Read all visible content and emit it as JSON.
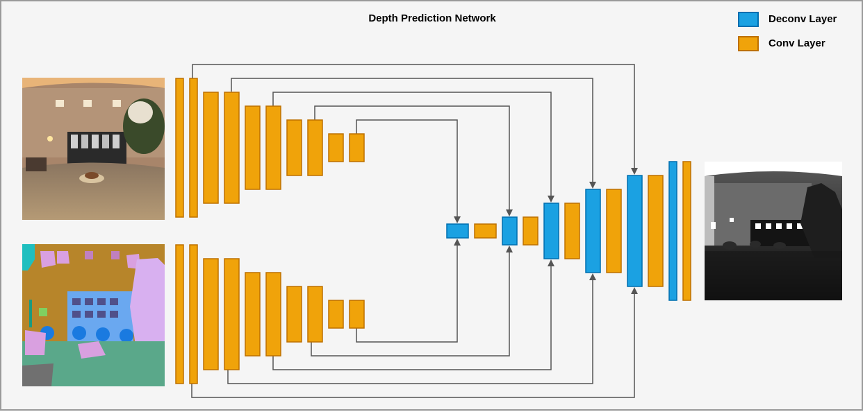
{
  "title": "Depth Prediction Network",
  "legend": {
    "deconv_label": "Deconv Layer",
    "conv_label": "Conv Layer"
  },
  "colors": {
    "conv_fill": "#f0a30a",
    "conv_stroke": "#bd7000",
    "deconv_fill": "#1ba1e2",
    "deconv_stroke": "#006eaf",
    "arrow": "#555555",
    "background": "#f5f5f5"
  },
  "images": {
    "input_rgb": "rgb-panorama-image",
    "input_semantic": "semantic-segmentation-image",
    "output_depth": "depth-map-image"
  }
}
